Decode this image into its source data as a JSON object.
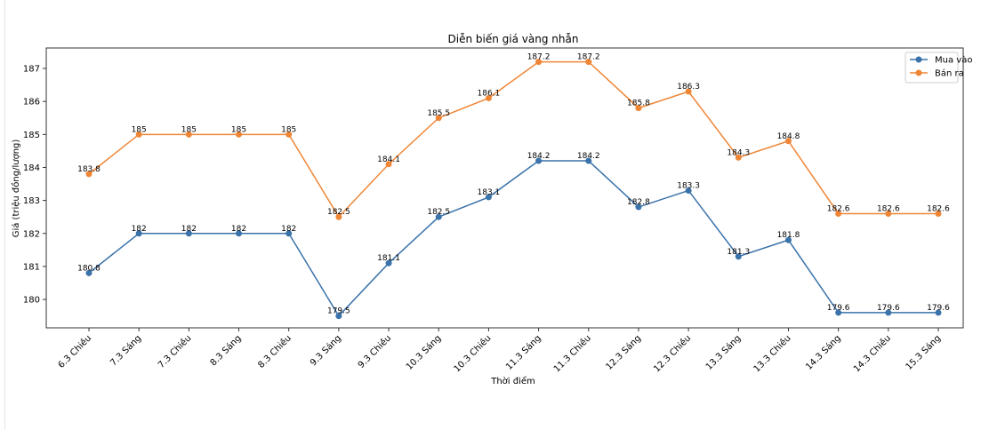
{
  "chart_data": {
    "type": "line",
    "title": "Diễn biến giá vàng nhẫn",
    "xlabel": "Thời điểm",
    "ylabel": "Giá (triệu đồng/lượng)",
    "categories": [
      "6.3 Chiều",
      "7.3 Sáng",
      "7.3 Chiều",
      "8.3 Sáng",
      "8.3 Chiều",
      "9.3 Sáng",
      "9.3 Chiều",
      "10.3 Sáng",
      "10.3 Chiều",
      "11.3 Sáng",
      "11.3 Chiều",
      "12.3 Sáng",
      "12.3 Chiều",
      "13.3 Sáng",
      "13.3 Chiều",
      "14.3 Sáng",
      "14.3 Chiều",
      "15.3 Sáng"
    ],
    "series": [
      {
        "name": "Mua vào",
        "color": "#3a72aa",
        "values": [
          180.8,
          182,
          182,
          182,
          182,
          179.5,
          181.1,
          182.5,
          183.1,
          184.2,
          184.2,
          182.8,
          183.3,
          181.3,
          181.8,
          179.6,
          179.6,
          179.6
        ]
      },
      {
        "name": "Bán ra",
        "color": "#ef8636",
        "values": [
          183.8,
          185,
          185,
          185,
          185,
          182.5,
          184.1,
          185.5,
          186.1,
          187.2,
          187.2,
          185.8,
          186.3,
          184.3,
          184.8,
          182.6,
          182.6,
          182.6
        ]
      }
    ],
    "yticks": [
      180,
      181,
      182,
      183,
      184,
      185,
      186,
      187
    ],
    "ylim": [
      179.14,
      187.62
    ],
    "grid": false,
    "legend": "top-right"
  }
}
